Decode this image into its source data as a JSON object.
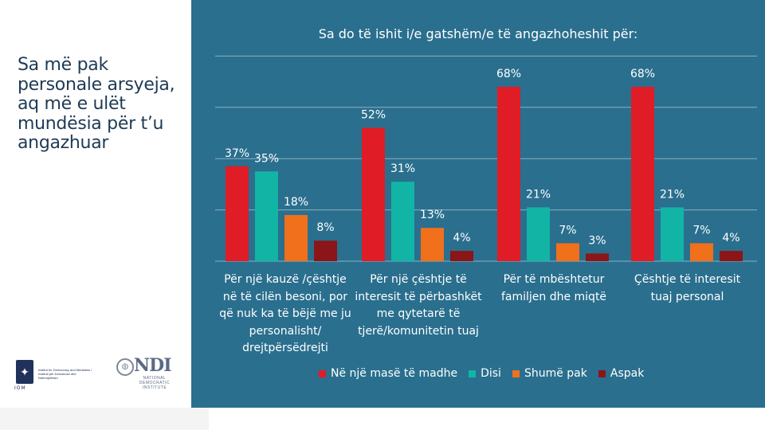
{
  "headline": "Sa më pak personale arsyeja, aq më e ulët mundësia për t’u angazhuar",
  "logos": {
    "iom_mark": "IOM",
    "iom_org": "Institut for Democracy and Mediation / Instituti për Demokraci dhe Ndërmjetësim",
    "ndi_word": "NDI",
    "ndi_sub": "NATIONAL DEMOCRATIC INSTITUTE"
  },
  "chart_data": {
    "type": "bar",
    "title": "Sa do të ishit i/e gatshëm/e të angazhoheshit për:",
    "categories": [
      "Për një kauzë /çështje në të cilën besoni, por që nuk ka të bëjë me ju personalisht/ drejtpërsëdrejti",
      "Për një çështje të interesit të përbashkët me qytetarë të tjerë/komunitetin tuaj",
      "Për të mbështetur familjen dhe miqtë",
      "Çështje të interesit tuaj personal"
    ],
    "series": [
      {
        "name": "Në një masë të madhe",
        "values": [
          37,
          52,
          68,
          68
        ],
        "color": "#e01c27"
      },
      {
        "name": "Disi",
        "values": [
          35,
          31,
          21,
          21
        ],
        "color": "#12b5a5"
      },
      {
        "name": "Shumë pak",
        "values": [
          18,
          13,
          7,
          7
        ],
        "color": "#f0701c"
      },
      {
        "name": "Aspak",
        "values": [
          8,
          4,
          3,
          4
        ],
        "color": "#8b1518"
      }
    ],
    "value_suffix": "%",
    "ylim": [
      0,
      80
    ],
    "grid": true,
    "legend": "bottom"
  },
  "category_lines": [
    "Për një kauzë /çështje\nnë të cilën besoni, por\nqë nuk ka të bëjë me ju\npersonalisht/\ndrejtpërsëdrejti",
    "Për një çështje të\ninteresit të përbashkët\nme qytetarë të\ntjerë/komunitetin tuaj",
    "Për të mbështetur\nfamiljen dhe miqtë",
    "Çështje të interesit\ntuaj personal"
  ]
}
